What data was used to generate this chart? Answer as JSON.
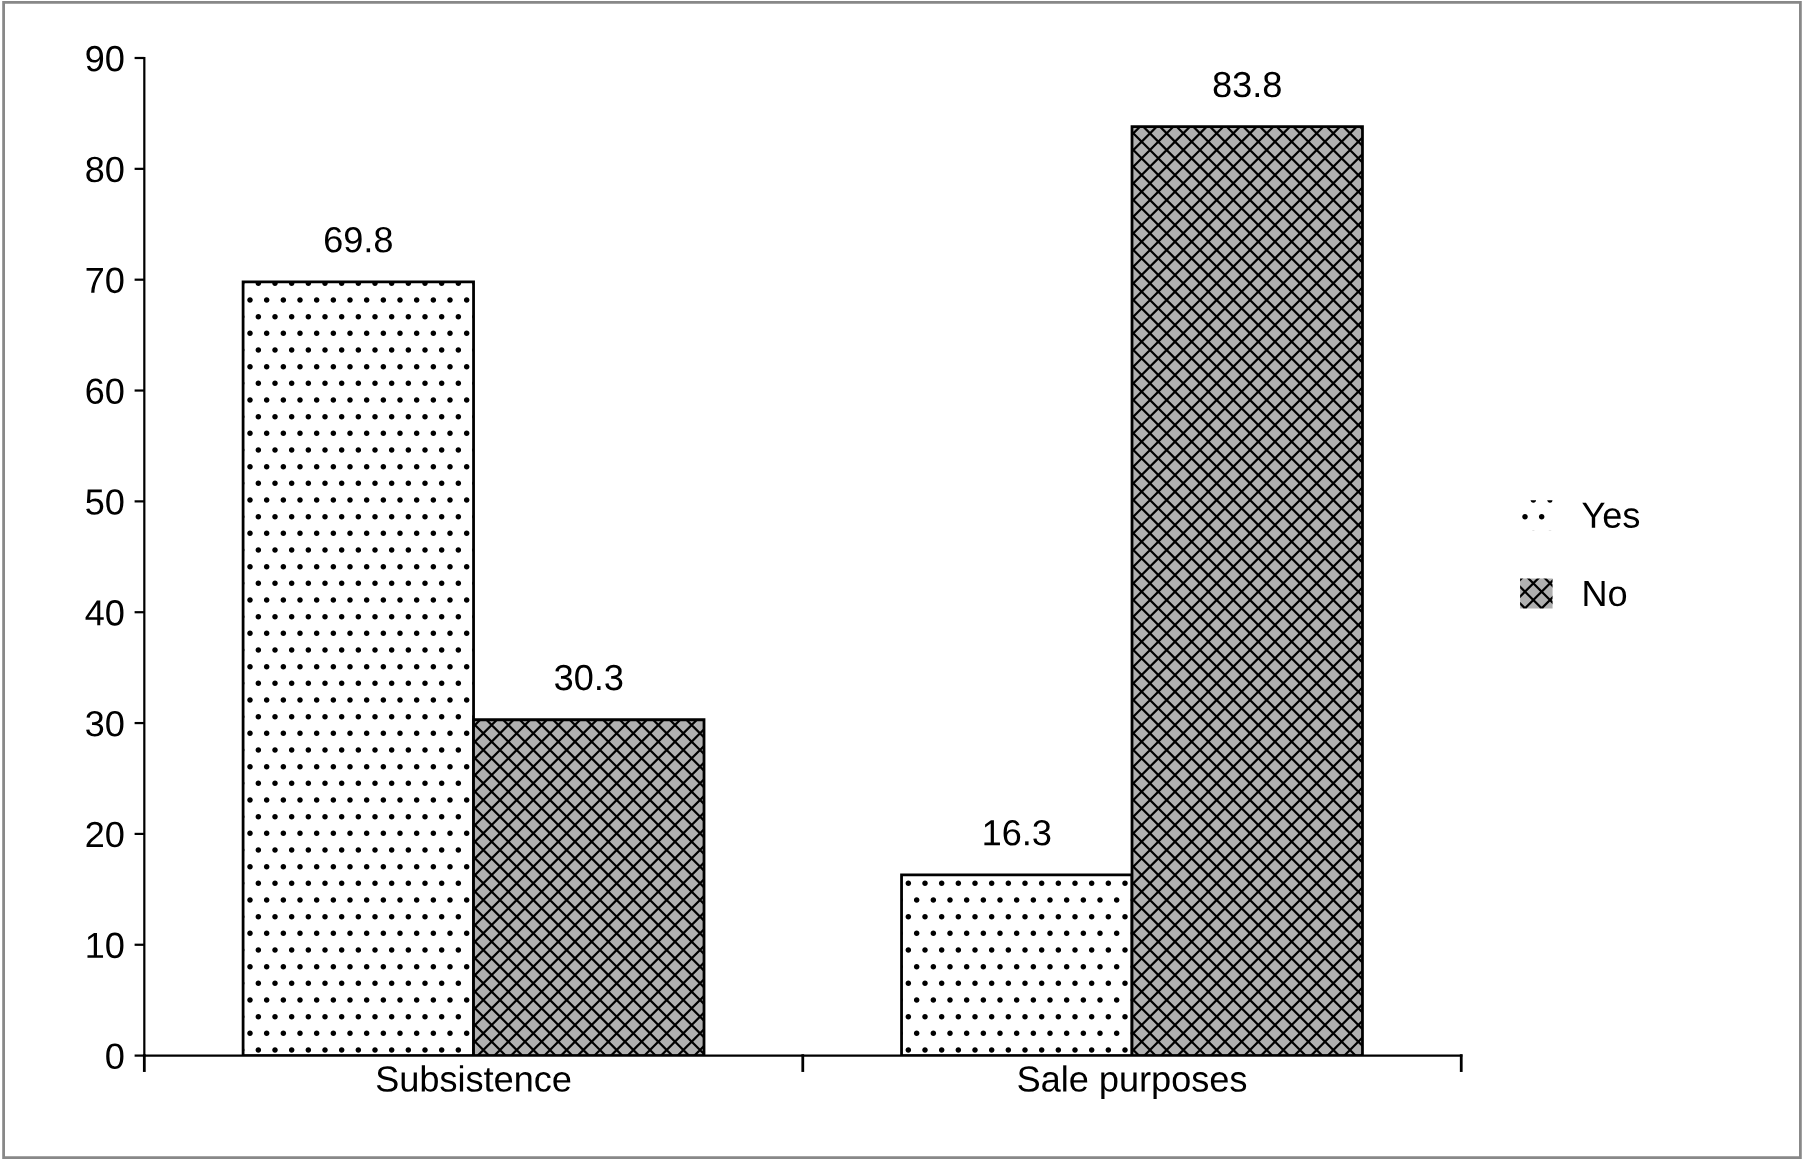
{
  "chart_data": {
    "type": "bar",
    "categories": [
      "Subsistence",
      "Sale purposes"
    ],
    "series": [
      {
        "name": "Yes",
        "color": "#ffffff",
        "values": [
          69.8,
          16.3
        ]
      },
      {
        "name": "No",
        "color": "#b0b0b0",
        "values": [
          30.3,
          83.8
        ]
      }
    ],
    "ylim": [
      0,
      90
    ],
    "yticks": [
      0,
      10,
      20,
      30,
      40,
      50,
      60,
      70,
      80,
      90
    ],
    "grid": false,
    "legend": "right",
    "data_labels": true
  }
}
